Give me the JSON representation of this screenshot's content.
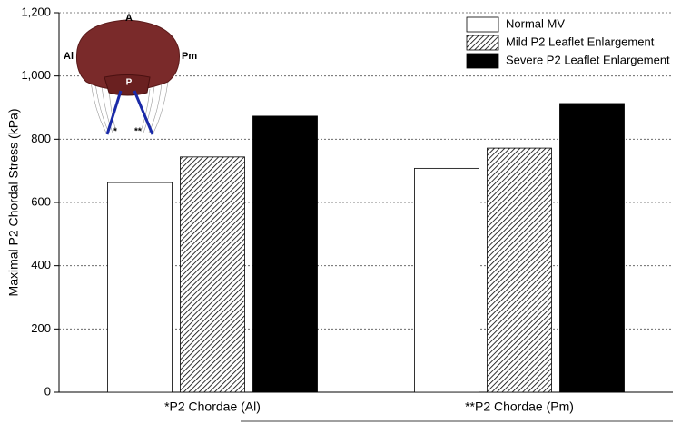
{
  "chart_data": {
    "type": "bar",
    "y_label": "Maximal P2 Chordal Stress (kPa)",
    "categories": [
      "*P2 Chordae (Al)",
      "**P2 Chordae (Pm)"
    ],
    "series": [
      {
        "name": "Normal MV",
        "color": "#ffffff",
        "values": [
          663,
          708
        ]
      },
      {
        "name": "Mild P2 Leaflet Enlargement",
        "color": "#000000",
        "pattern": "diagonal-hatch",
        "values": [
          744,
          772
        ]
      },
      {
        "name": "Severe P2 Leaflet Enlargement",
        "color": "#000000",
        "values": [
          873,
          913
        ]
      }
    ],
    "ylim": [
      0,
      1200
    ],
    "yticks": [
      0,
      200,
      400,
      600,
      800,
      {
        "value": 1000,
        "label": "1,000"
      },
      {
        "value": 1200,
        "label": "1,200"
      }
    ],
    "grid": true,
    "legend": "upper right",
    "inset_labels": [
      "A",
      "Al",
      "Pm",
      "P",
      "*",
      "**"
    ]
  }
}
